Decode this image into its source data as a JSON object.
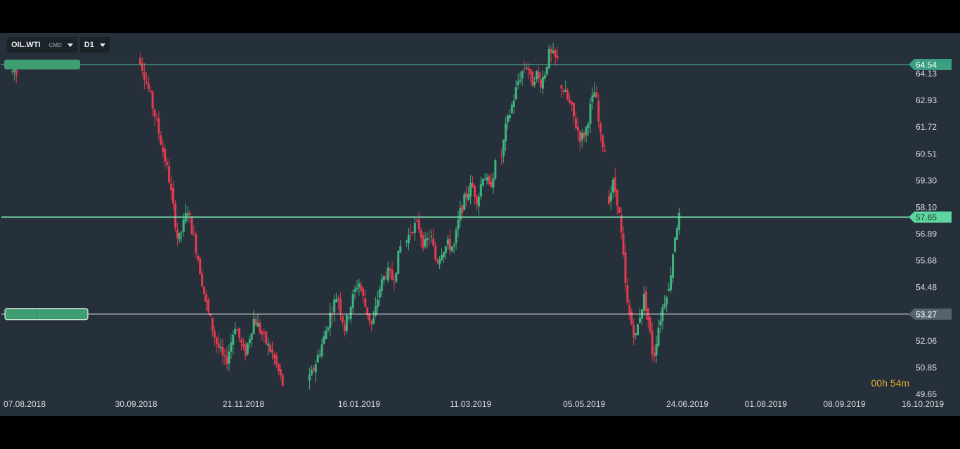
{
  "toolbar": {
    "symbol": "OIL.WTI",
    "symbol_type": "CMD",
    "timeframe": "D1"
  },
  "timer": {
    "hours": "00",
    "hours_unit": "h",
    "minutes": "54",
    "minutes_unit": "m"
  },
  "colors": {
    "background": "#26303a",
    "up": "#3fb37f",
    "down": "#e23b4f",
    "resistance_line": "#4fc49a",
    "current_line": "#6fd9a8",
    "support_line": "#ffffff",
    "text": "#d8dde1"
  },
  "chart_data": {
    "type": "candlestick",
    "symbol": "OIL.WTI",
    "timeframe": "D1",
    "ylim": [
      49.65,
      65.23
    ],
    "y_ticks": [
      "64.13",
      "62.93",
      "61.72",
      "60.51",
      "59.30",
      "58.10",
      "56.89",
      "55.68",
      "54.48",
      "53.27",
      "52.06",
      "50.85",
      "49.65"
    ],
    "x_ticks": [
      "07.08.2018",
      "30.09.2018",
      "21.11.2018",
      "16.01.2019",
      "11.03.2019",
      "05.05.2019",
      "24.06.2019",
      "01.08.2019",
      "08.09.2019",
      "16.10.2019"
    ],
    "horizontal_lines": [
      {
        "value": 64.54,
        "label": "64.54",
        "style": "resistance"
      },
      {
        "value": 57.65,
        "label": "57.65",
        "style": "current"
      },
      {
        "value": 53.27,
        "label": "53.27",
        "style": "support"
      }
    ],
    "segments": [
      {
        "start": "01.08.2018",
        "end": "03.08.2018",
        "points": [
          64.2,
          64.4,
          64.1
        ]
      },
      {
        "start": "02.10.2018",
        "end": "10.12.2018",
        "points": [
          64.8,
          63.2,
          61.4,
          59.5,
          56.5,
          58.0,
          56.0,
          53.6,
          52.0,
          51.0,
          52.8,
          51.4,
          53.1,
          52.2,
          51.4,
          50.1
        ]
      },
      {
        "start": "23.12.2018",
        "end": "05.02.2019",
        "points": [
          50.3,
          51.2,
          52.1,
          53.3,
          54.2,
          52.6,
          53.8,
          54.8,
          53.6,
          52.7,
          54.4,
          55.2,
          54.8,
          56.3
        ]
      },
      {
        "start": "08.02.2019",
        "end": "23.03.2019",
        "points": [
          56.6,
          57.2,
          57.3,
          56.3,
          56.9,
          55.6,
          56.2,
          56.4,
          56.3,
          57.8,
          58.6,
          59.1,
          58.4,
          59.7,
          58.9,
          60.0
        ]
      },
      {
        "start": "26.03.2019",
        "end": "22.04.2019",
        "points": [
          60.4,
          61.7,
          62.4,
          63.1,
          63.9,
          64.3,
          64.6,
          63.6,
          64.2,
          63.7,
          64.1,
          65.0,
          64.9,
          64.7
        ]
      },
      {
        "start": "24.04.2019",
        "end": "15.05.2019",
        "points": [
          63.6,
          63.1,
          62.6,
          61.8,
          61.2,
          61.5,
          62.6,
          63.4,
          61.3,
          60.7
        ]
      },
      {
        "start": "17.05.2019",
        "end": "14.06.2019",
        "points": [
          58.5,
          59.2,
          58.3,
          56.4,
          53.8,
          52.9,
          52.2,
          53.3,
          54.1,
          52.8,
          51.2,
          52.6,
          53.5,
          54.3
        ]
      },
      {
        "start": "15.06.2019",
        "end": "20.06.2019",
        "points": [
          54.3,
          55.8,
          57.1,
          57.65
        ]
      }
    ]
  }
}
